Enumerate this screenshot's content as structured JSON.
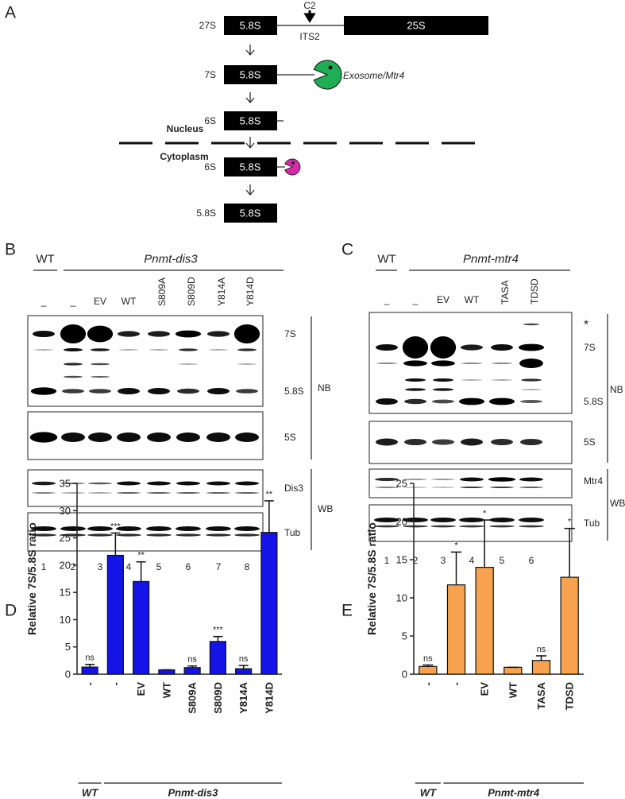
{
  "panel_a": {
    "label": "A",
    "c2": "C2",
    "its2": "ITS2",
    "exosome": "Exosome/Mtr4",
    "nucleus": "Nucleus",
    "cytoplasm": "Cytoplasm",
    "rows": [
      {
        "name": "27S",
        "box": "5.8S",
        "box2": "25S"
      },
      {
        "name": "7S",
        "box": "5.8S"
      },
      {
        "name": "6S",
        "box": "5.8S"
      },
      {
        "name": "6S",
        "box": "5.8S"
      },
      {
        "name": "5.8S",
        "box": "5.8S"
      }
    ]
  },
  "panel_b": {
    "label": "B",
    "wt": "WT",
    "strain": "Pnmt-dis3",
    "lanes": [
      "_",
      "_",
      "EV",
      "WT",
      "S809A",
      "S809D",
      "Y814A",
      "Y814D"
    ],
    "lane_numbers": [
      1,
      2,
      3,
      4,
      5,
      6,
      7,
      8
    ],
    "bands": [
      "7S",
      "5.8S",
      "5S",
      "Dis3",
      "Tub"
    ],
    "groups": [
      "NB",
      "WB"
    ]
  },
  "panel_c": {
    "label": "C",
    "wt": "WT",
    "strain": "Pnmt-mtr4",
    "lanes": [
      "_",
      "_",
      "EV",
      "WT",
      "TASA",
      "TDSD"
    ],
    "lane_numbers": [
      1,
      2,
      3,
      4,
      5,
      6
    ],
    "star": "*",
    "bands": [
      "7S",
      "5.8S",
      "5S",
      "Mtr4",
      "Tub"
    ],
    "groups": [
      "NB",
      "WB"
    ]
  },
  "chart_data": [
    {
      "type": "bar",
      "label": "D",
      "ylabel": "Relative 7S/5.8S ratio",
      "categories": [
        "-",
        "-",
        "EV",
        "WT",
        "S809A",
        "S809D",
        "Y814A",
        "Y814D"
      ],
      "values": [
        1.3,
        21.8,
        17,
        0.8,
        1.2,
        6,
        1,
        26
      ],
      "errors": [
        0.5,
        4.1,
        3.6,
        0,
        0.3,
        0.9,
        0.6,
        5.8
      ],
      "annotations": [
        "ns",
        "***",
        "**",
        null,
        "ns",
        "***",
        "ns",
        "**"
      ],
      "groups": [
        "WT",
        "Pnmt-dis3"
      ],
      "color": "#1414e6",
      "ylim": [
        0,
        35
      ],
      "yticks": [
        0,
        5,
        10,
        15,
        20,
        25,
        30,
        35
      ]
    },
    {
      "type": "bar",
      "label": "E",
      "ylabel": "Relative 7S/5.8S ratio",
      "categories": [
        "-",
        "-",
        "EV",
        "WT",
        "TASA",
        "TDSD"
      ],
      "values": [
        1,
        11.7,
        14,
        0.9,
        1.8,
        12.7
      ],
      "errors": [
        0.2,
        4.3,
        6.2,
        0,
        0.6,
        6.4
      ],
      "annotations": [
        "ns",
        "*",
        "*",
        null,
        "ns",
        "*"
      ],
      "groups": [
        "WT",
        "Pnmt-mtr4"
      ],
      "color": "#f7a24f",
      "ylim": [
        0,
        25
      ],
      "yticks": [
        0,
        5,
        10,
        15,
        20,
        25
      ]
    }
  ]
}
